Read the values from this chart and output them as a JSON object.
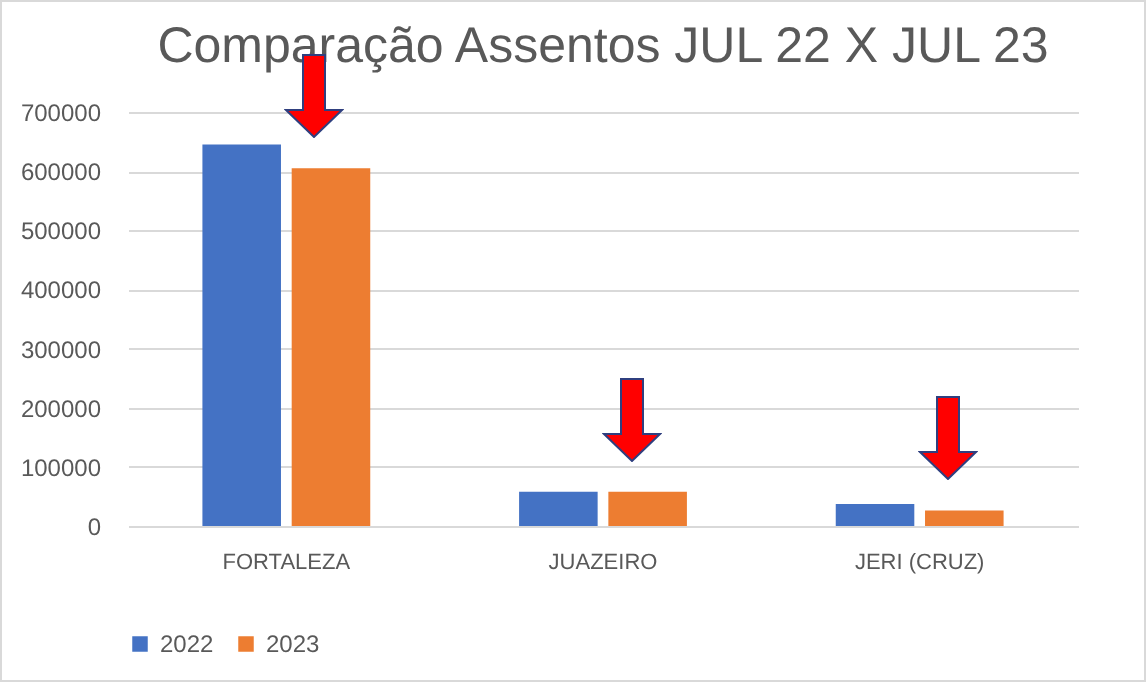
{
  "chart_data": {
    "type": "bar",
    "title": "Comparação Assentos  JUL 22 X JUL 23",
    "categories": [
      "FORTALEZA",
      "JUAZEIRO",
      "JERI (CRUZ)"
    ],
    "series": [
      {
        "name": "2022",
        "color": "#4472c4",
        "values": [
          645000,
          58000,
          37000
        ]
      },
      {
        "name": "2023",
        "color": "#ed7d31",
        "values": [
          605000,
          58000,
          26000
        ]
      }
    ],
    "ylim": [
      0,
      700000
    ],
    "yticks": [
      0,
      100000,
      200000,
      300000,
      400000,
      500000,
      600000,
      700000
    ],
    "grid": "y",
    "legend": "bottom"
  }
}
